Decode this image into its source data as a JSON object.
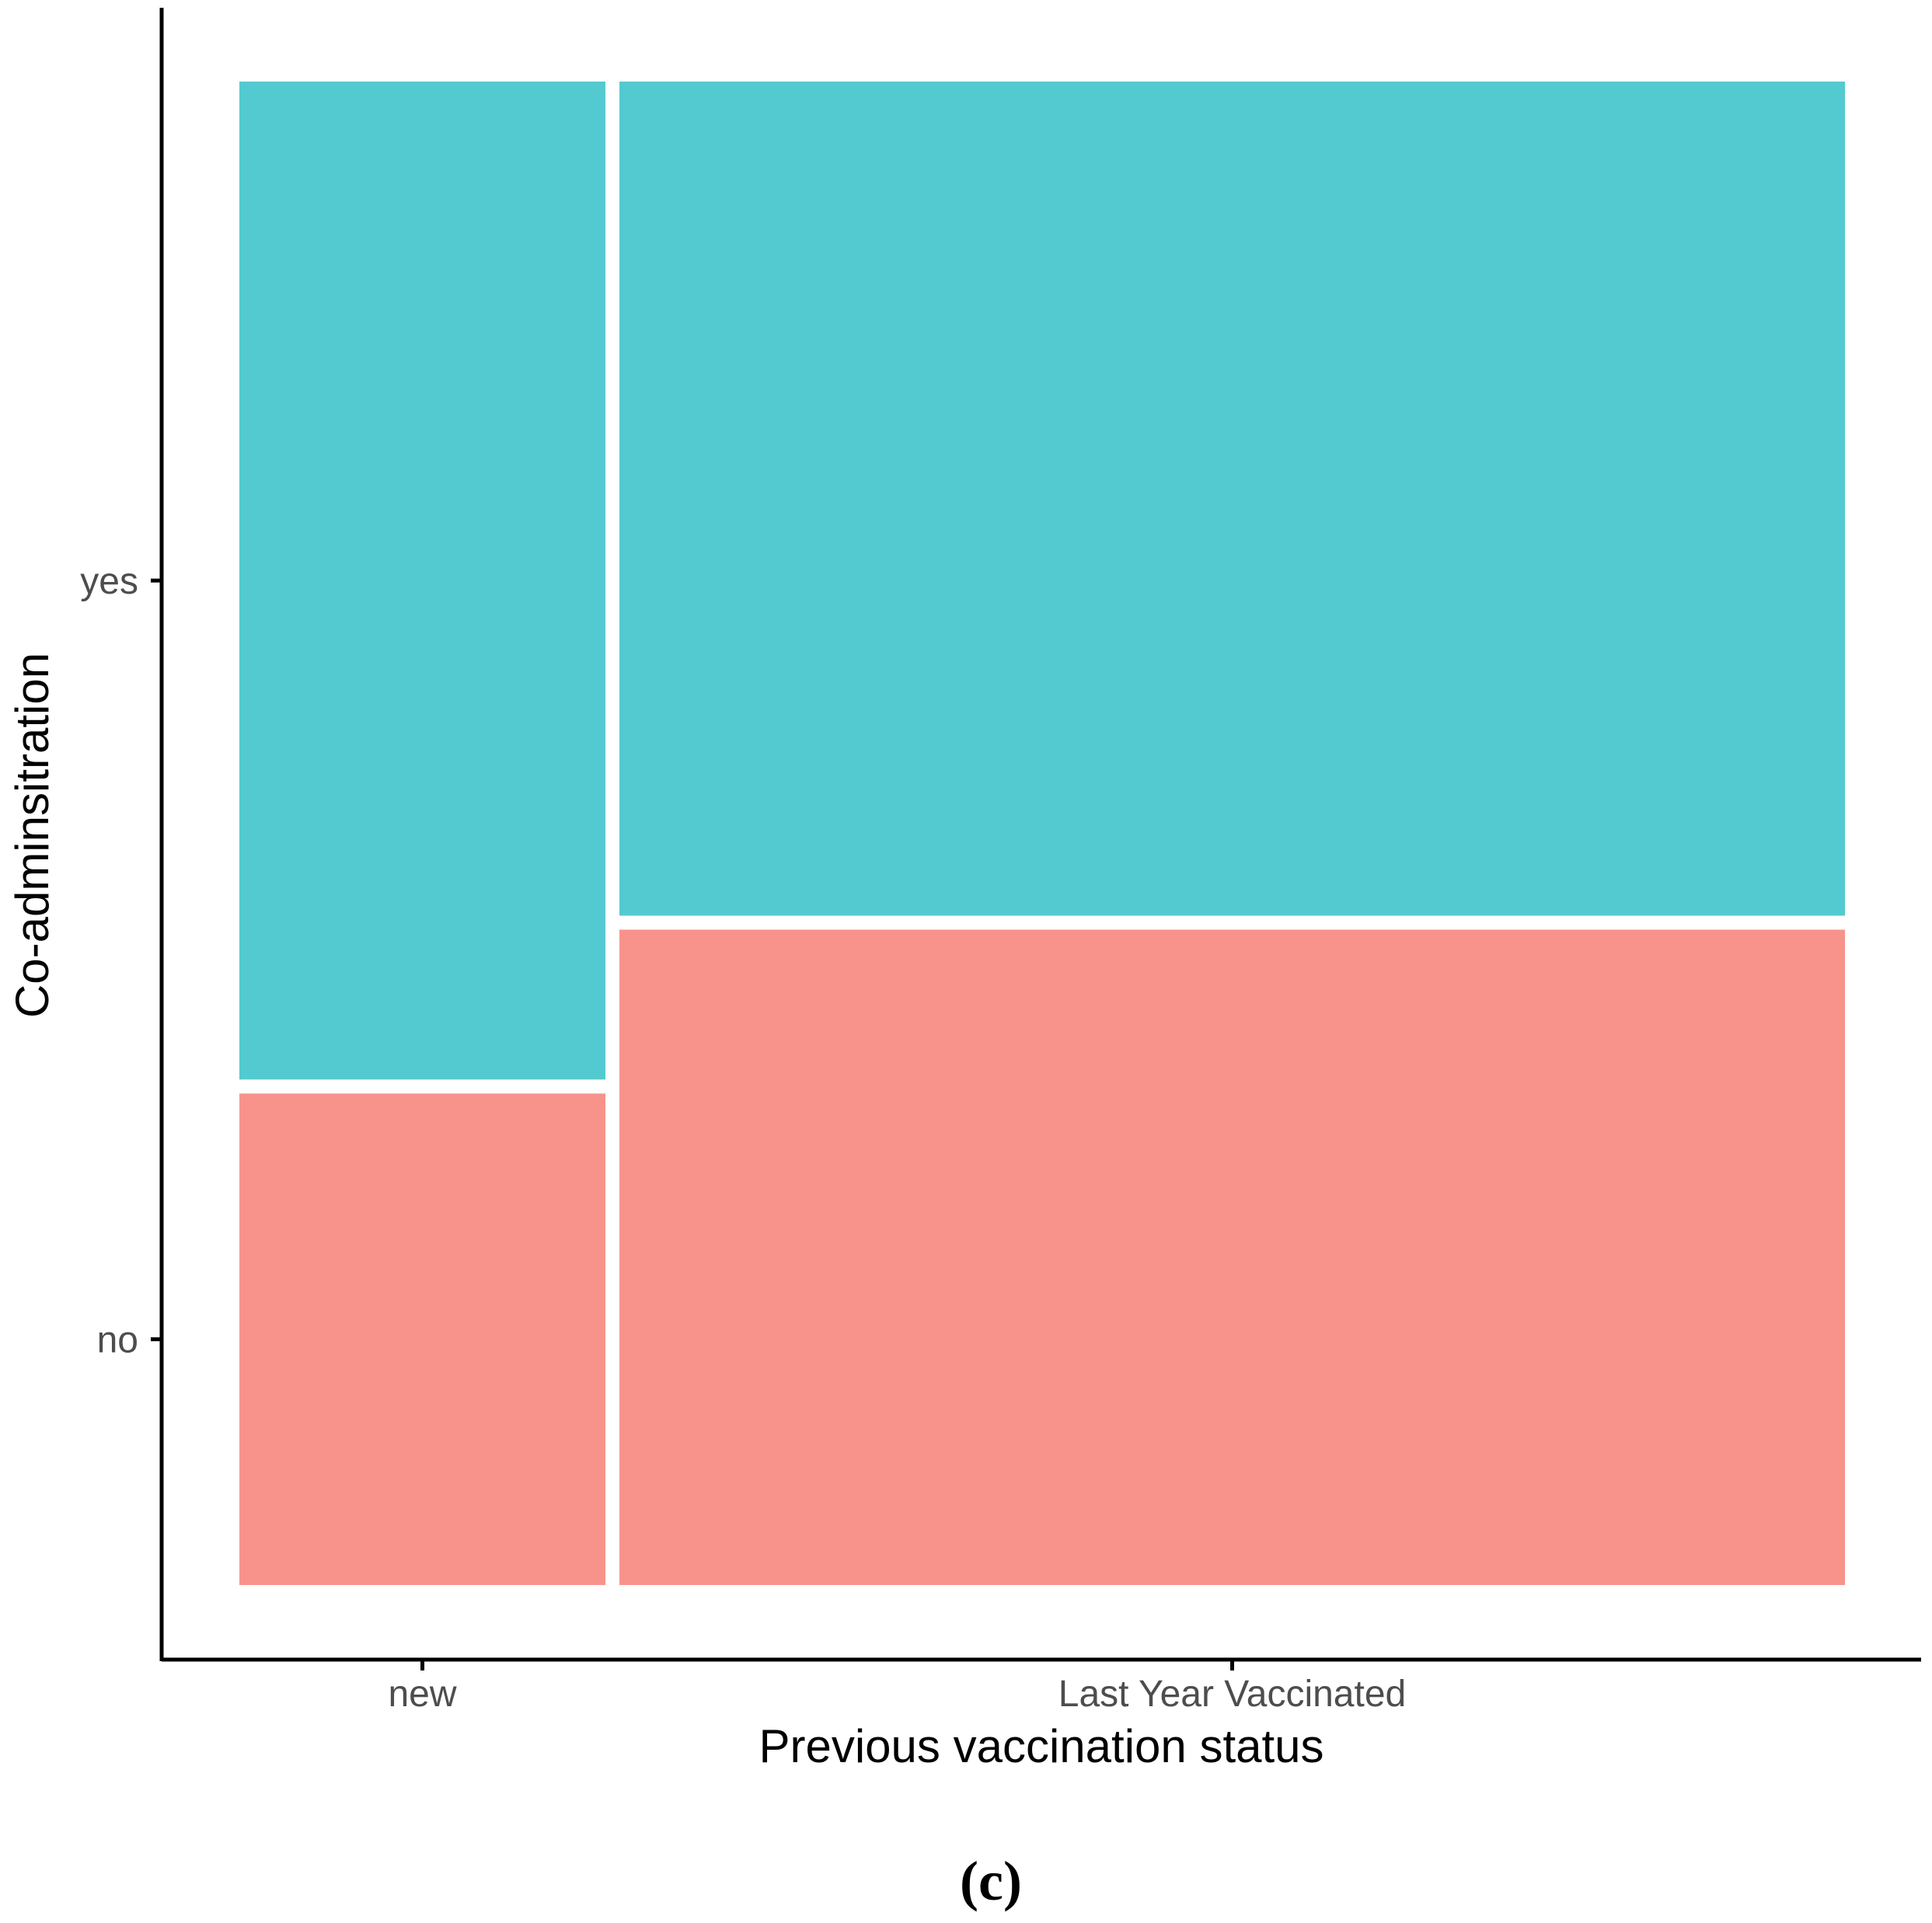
{
  "chart_data": {
    "type": "mosaic",
    "xlabel": "Previous vaccination status",
    "ylabel": "Co-adminsitration",
    "panel_label": "(c)",
    "x_categories": [
      {
        "name": "new",
        "width_fraction": 0.23
      },
      {
        "name": "Last Year Vaccinated",
        "width_fraction": 0.77
      }
    ],
    "y_categories": [
      "no",
      "yes"
    ],
    "y_tick_labels": [
      "yes",
      "no"
    ],
    "proportions": {
      "new": {
        "no": 0.33,
        "yes": 0.67
      },
      "Last Year Vaccinated": {
        "no": 0.44,
        "yes": 0.56
      }
    },
    "colors": {
      "no": "#F8938C",
      "yes": "#52CAD0"
    },
    "legend": "none",
    "grid": false
  }
}
